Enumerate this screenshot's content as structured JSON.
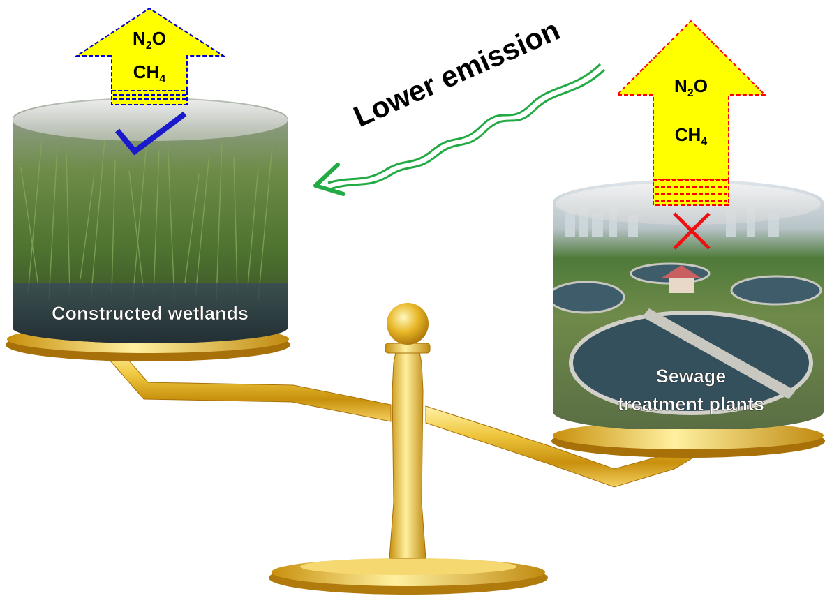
{
  "emission_phrase": "Lower emission",
  "left_system": {
    "label": "Constructed wetlands",
    "gases": {
      "g1_main": "N",
      "g1_sub": "2",
      "g1_tail": "O",
      "g2_main": "CH",
      "g2_sub": "4"
    },
    "verdict": "check"
  },
  "right_system": {
    "label_line1": "Sewage",
    "label_line2": "treatment plants",
    "gases": {
      "g1_main": "N",
      "g1_sub": "2",
      "g1_tail": "O",
      "g2_main": "CH",
      "g2_sub": "4"
    },
    "verdict": "cross"
  },
  "colors": {
    "arrow_fill": "#ffff00",
    "left_arrow_outline": "#0000cc",
    "right_arrow_outline": "#ff0000",
    "check_mark": "#1a1acc",
    "cross_mark": "#ee1111",
    "wavy_arrow": "#22aa44",
    "gold": "#e0b020",
    "label_text": "#ffffff"
  },
  "icons": [
    "check-mark-icon",
    "cross-mark-icon",
    "wavy-arrow-icon",
    "balance-scale-icon"
  ]
}
